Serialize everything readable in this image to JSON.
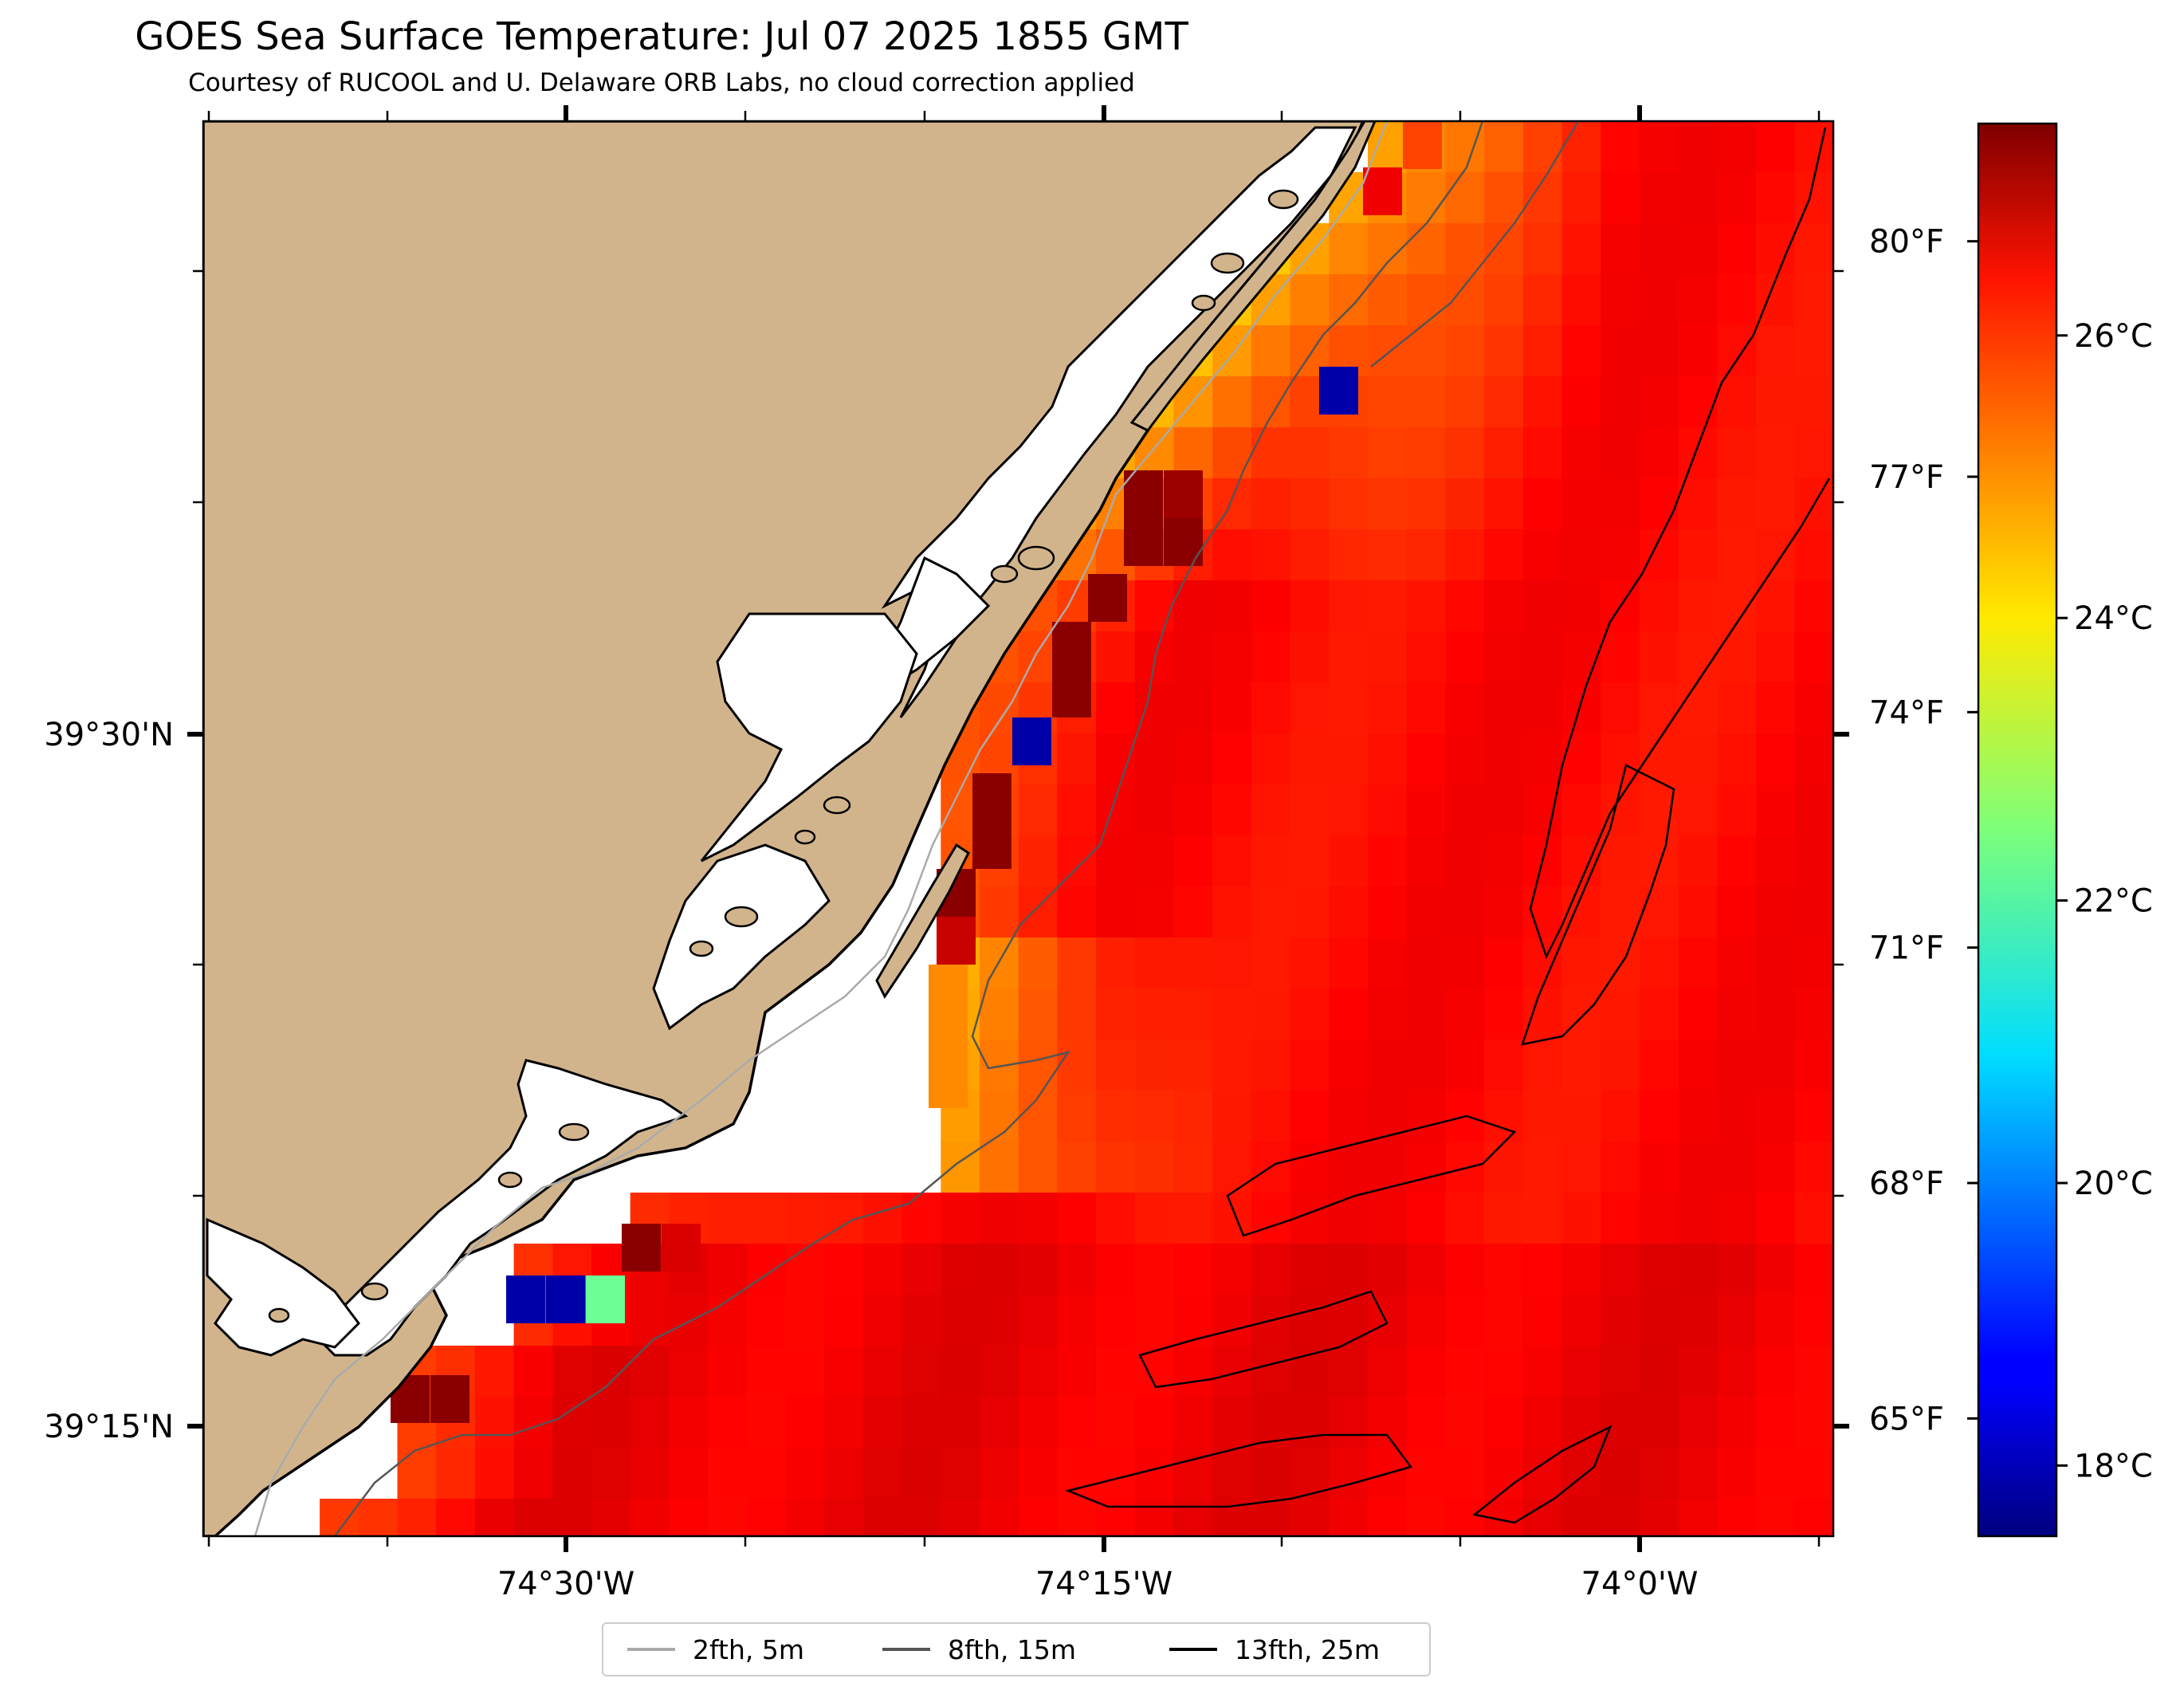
{
  "title": "GOES Sea Surface Temperature: Jul 07 2025 1855 GMT",
  "subtitle": "Courtesy of RUCOOL and U. Delaware ORB Labs, no cloud correction applied",
  "map": {
    "lat_labels": [
      "39°30'N",
      "39°15'N"
    ],
    "lon_labels": [
      "74°30'W",
      "74°15'W",
      "74°0'W"
    ],
    "land_color": "#d2b48c",
    "water_nodata_color": "#ffffff"
  },
  "colorbar": {
    "min_c": 17.5,
    "max_c": 27.5,
    "colormap": "jet",
    "celsius_ticks": [
      "18°C",
      "20°C",
      "22°C",
      "24°C",
      "26°C"
    ],
    "fahrenheit_ticks": [
      "65°F",
      "68°F",
      "71°F",
      "74°F",
      "77°F",
      "80°F"
    ]
  },
  "legend": {
    "items": [
      {
        "label": "2fth, 5m",
        "color": "#aaaaaa"
      },
      {
        "label": "8fth, 15m",
        "color": "#555555"
      },
      {
        "label": "13fth, 25m",
        "color": "#000000"
      }
    ]
  }
}
